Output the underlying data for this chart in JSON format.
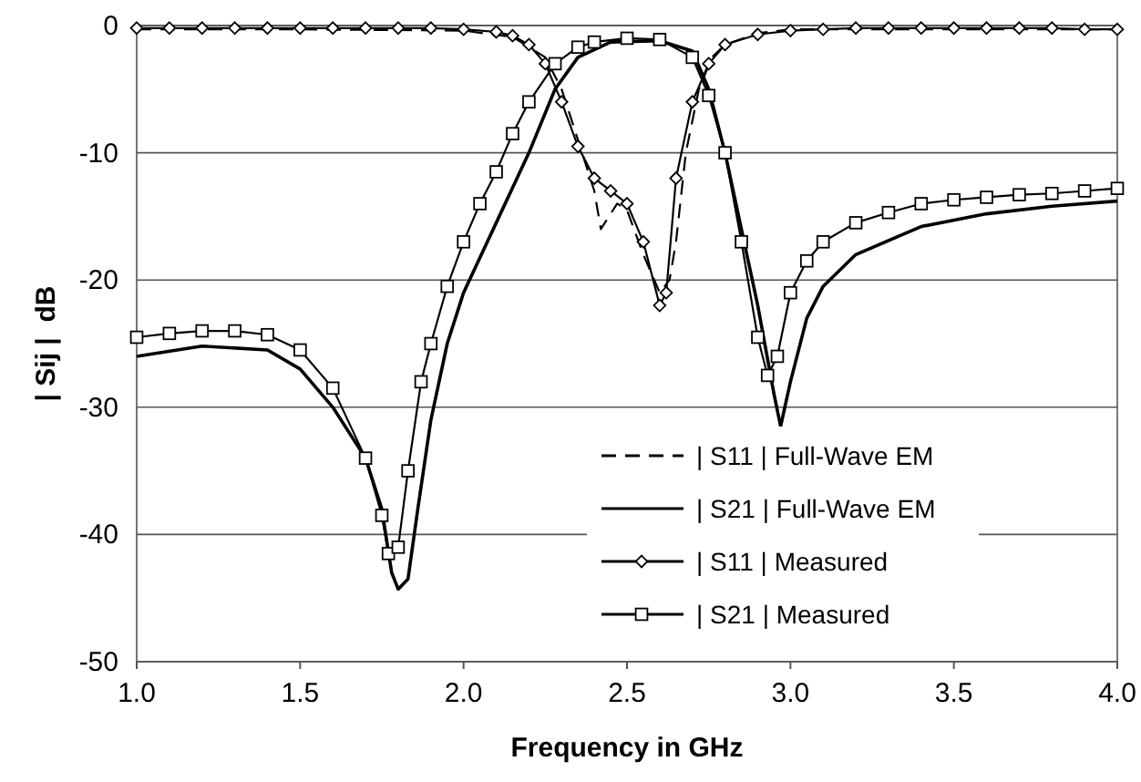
{
  "chart_data": {
    "type": "line",
    "xlabel": "Frequency in GHz",
    "ylabel": "| Sij |  dB",
    "xlim": [
      1.0,
      4.0
    ],
    "xticks": [
      {
        "value": 1,
        "label": "1.0"
      },
      {
        "value": 1.5,
        "label": "1.5"
      },
      {
        "value": 2,
        "label": "2.0"
      },
      {
        "value": 2.5,
        "label": "2.5"
      },
      {
        "value": 3,
        "label": "3.0"
      },
      {
        "value": 3.5,
        "label": "3.5"
      },
      {
        "value": 4,
        "label": "4.0"
      }
    ],
    "ylim": [
      -50,
      0
    ],
    "yticks": [
      -50,
      -40,
      -30,
      -20,
      -10,
      0
    ],
    "grid": "y",
    "legend": "bottom right",
    "series": [
      {
        "name": "| S11 | Full-Wave EM",
        "color": "#000000",
        "line_style": "dashed",
        "marker": "none",
        "x": [
          1.0,
          1.5,
          2.0,
          2.15,
          2.25,
          2.3,
          2.35,
          2.4,
          2.42,
          2.47,
          2.5,
          2.55,
          2.6,
          2.63,
          2.65,
          2.68,
          2.72,
          2.76,
          2.8,
          2.9,
          3.0,
          3.5,
          4.0
        ],
        "values": [
          -0.3,
          -0.3,
          -0.4,
          -0.9,
          -2.5,
          -5,
          -9,
          -13,
          -16,
          -14,
          -14.5,
          -18,
          -21,
          -20,
          -17,
          -10,
          -5,
          -2.5,
          -1.5,
          -0.6,
          -0.3,
          -0.3,
          -0.3
        ]
      },
      {
        "name": "| S21 | Full-Wave EM",
        "color": "#000000",
        "line_style": "solid",
        "marker": "none",
        "x": [
          1.0,
          1.2,
          1.4,
          1.5,
          1.6,
          1.7,
          1.75,
          1.78,
          1.8,
          1.83,
          1.86,
          1.9,
          1.95,
          2.0,
          2.1,
          2.2,
          2.28,
          2.35,
          2.45,
          2.6,
          2.7,
          2.75,
          2.8,
          2.85,
          2.9,
          2.95,
          2.97,
          3.0,
          3.05,
          3.1,
          3.2,
          3.4,
          3.6,
          3.8,
          4.0
        ],
        "values": [
          -26,
          -25.2,
          -25.5,
          -27,
          -30,
          -34,
          -38,
          -43,
          -44.3,
          -43.5,
          -38,
          -31,
          -25,
          -21,
          -15.5,
          -10,
          -5,
          -2.5,
          -1.3,
          -1.2,
          -2,
          -5,
          -10,
          -16,
          -22,
          -29,
          -31.5,
          -28,
          -23,
          -20.5,
          -18,
          -15.8,
          -14.8,
          -14.2,
          -13.8
        ]
      },
      {
        "name": "| S11 | Measured",
        "color": "#000000",
        "line_style": "solid",
        "marker": "diamond",
        "x": [
          1.0,
          1.1,
          1.2,
          1.3,
          1.4,
          1.5,
          1.6,
          1.7,
          1.8,
          1.9,
          2.0,
          2.1,
          2.15,
          2.2,
          2.25,
          2.3,
          2.35,
          2.4,
          2.45,
          2.5,
          2.55,
          2.6,
          2.62,
          2.65,
          2.7,
          2.75,
          2.8,
          2.9,
          3.0,
          3.1,
          3.2,
          3.3,
          3.4,
          3.5,
          3.6,
          3.7,
          3.8,
          3.9,
          4.0
        ],
        "values": [
          -0.2,
          -0.2,
          -0.2,
          -0.2,
          -0.2,
          -0.2,
          -0.2,
          -0.2,
          -0.2,
          -0.2,
          -0.3,
          -0.5,
          -0.8,
          -1.5,
          -3,
          -6,
          -9.5,
          -12,
          -13,
          -14,
          -17,
          -22,
          -21,
          -12,
          -6,
          -3,
          -1.5,
          -0.7,
          -0.4,
          -0.3,
          -0.2,
          -0.2,
          -0.2,
          -0.2,
          -0.2,
          -0.2,
          -0.2,
          -0.3,
          -0.3
        ]
      },
      {
        "name": "| S21 | Measured",
        "color": "#000000",
        "line_style": "solid",
        "marker": "square",
        "x": [
          1.0,
          1.1,
          1.2,
          1.3,
          1.4,
          1.5,
          1.6,
          1.7,
          1.75,
          1.77,
          1.8,
          1.83,
          1.87,
          1.9,
          1.95,
          2.0,
          2.05,
          2.1,
          2.15,
          2.2,
          2.28,
          2.35,
          2.4,
          2.5,
          2.6,
          2.7,
          2.75,
          2.8,
          2.85,
          2.9,
          2.93,
          2.96,
          3.0,
          3.05,
          3.1,
          3.2,
          3.3,
          3.4,
          3.5,
          3.6,
          3.7,
          3.8,
          3.9,
          4.0
        ],
        "values": [
          -24.5,
          -24.2,
          -24,
          -24,
          -24.3,
          -25.5,
          -28.5,
          -34,
          -38.5,
          -41.5,
          -41,
          -35,
          -28,
          -25,
          -20.5,
          -17,
          -14,
          -11.5,
          -8.5,
          -6,
          -3,
          -1.7,
          -1.3,
          -1,
          -1.1,
          -2.5,
          -5.5,
          -10,
          -17,
          -24.5,
          -27.5,
          -26,
          -21,
          -18.5,
          -17,
          -15.5,
          -14.7,
          -14,
          -13.7,
          -13.5,
          -13.3,
          -13.2,
          -13,
          -12.8
        ]
      }
    ]
  }
}
